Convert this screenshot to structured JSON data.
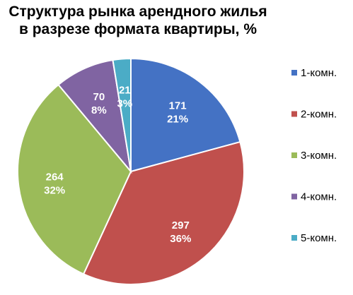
{
  "chart_data": {
    "type": "pie",
    "title_lines": [
      "Структура рынка арендного жилья",
      "в разрезе формата квартиры, %"
    ],
    "legend_position": "right",
    "slices": [
      {
        "label": "1-комн.",
        "value": 171,
        "percent_label": "21%",
        "color": "#4472c4"
      },
      {
        "label": "2-комн.",
        "value": 297,
        "percent_label": "36%",
        "color": "#c0504d"
      },
      {
        "label": "3-комн.",
        "value": 264,
        "percent_label": "32%",
        "color": "#9bbb59"
      },
      {
        "label": "4-комн.",
        "value": 70,
        "percent_label": "8%",
        "color": "#8064a2"
      },
      {
        "label": "5-комн.",
        "value": 21,
        "percent_label": "3%",
        "color": "#4bacc6"
      }
    ]
  }
}
